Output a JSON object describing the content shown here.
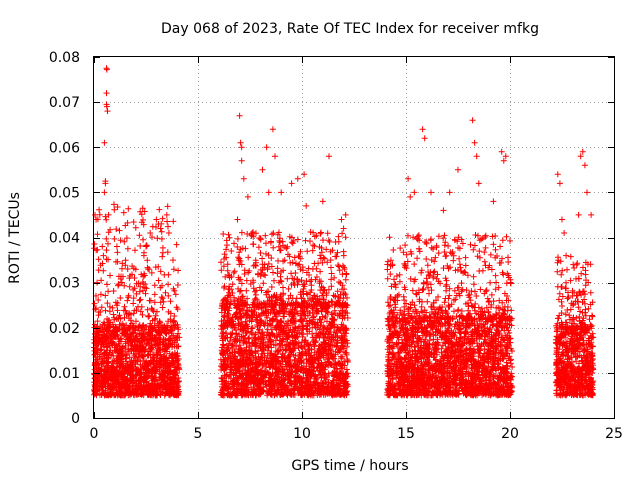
{
  "chart_data": {
    "type": "scatter",
    "title": "Day 068 of 2023, Rate Of TEC Index for receiver mfkg",
    "xlabel": "GPS time / hours",
    "ylabel": "ROTI / TECUs",
    "xlim": [
      0,
      25
    ],
    "ylim": [
      0,
      0.08
    ],
    "xticks": [
      0,
      5,
      10,
      15,
      20,
      25
    ],
    "xtick_labels": [
      "0",
      "5",
      "10",
      "15",
      "20",
      "25"
    ],
    "yticks": [
      0,
      0.01,
      0.02,
      0.03,
      0.04,
      0.05,
      0.06,
      0.07,
      0.08
    ],
    "ytick_labels": [
      "0",
      "0.01",
      "0.02",
      "0.03",
      "0.04",
      "0.05",
      "0.06",
      "0.07",
      "0.08"
    ],
    "grid": true,
    "marker": "+",
    "color": "#ff0000",
    "series": [
      {
        "name": "ROTI",
        "segments": [
          {
            "x_start": 0.0,
            "x_end": 4.1,
            "typical": [
              0.005,
              0.02
            ],
            "max": 0.077
          },
          {
            "x_start": 6.1,
            "x_end": 12.2,
            "typical": [
              0.005,
              0.025
            ],
            "max": 0.067
          },
          {
            "x_start": 14.1,
            "x_end": 20.1,
            "typical": [
              0.005,
              0.022
            ],
            "max": 0.066
          },
          {
            "x_start": 22.2,
            "x_end": 24.0,
            "typical": [
              0.005,
              0.02
            ],
            "max": 0.059
          }
        ],
        "points": [
          [
            0.05,
            0.045
          ],
          [
            0.1,
            0.044
          ],
          [
            0.15,
            0.03
          ],
          [
            0.4,
            0.038
          ],
          [
            0.45,
            0.036
          ],
          [
            0.55,
            0.052
          ],
          [
            0.55,
            0.0525
          ],
          [
            0.5,
            0.05
          ],
          [
            0.5,
            0.061
          ],
          [
            0.6,
            0.0775
          ],
          [
            0.62,
            0.0772
          ],
          [
            0.6,
            0.072
          ],
          [
            0.6,
            0.0695
          ],
          [
            0.62,
            0.069
          ],
          [
            0.65,
            0.068
          ],
          [
            0.7,
            0.045
          ],
          [
            1.1,
            0.038
          ],
          [
            1.7,
            0.031
          ],
          [
            2.2,
            0.028
          ],
          [
            2.4,
            0.036
          ],
          [
            2.5,
            0.038
          ],
          [
            2.6,
            0.033
          ],
          [
            2.7,
            0.041
          ],
          [
            3.0,
            0.044
          ],
          [
            3.1,
            0.043
          ],
          [
            3.2,
            0.042
          ],
          [
            3.5,
            0.045
          ],
          [
            3.6,
            0.041
          ],
          [
            3.8,
            0.035
          ],
          [
            6.6,
            0.037
          ],
          [
            6.9,
            0.044
          ],
          [
            7.0,
            0.067
          ],
          [
            7.05,
            0.061
          ],
          [
            7.1,
            0.06
          ],
          [
            7.1,
            0.057
          ],
          [
            7.2,
            0.053
          ],
          [
            7.4,
            0.049
          ],
          [
            8.1,
            0.055
          ],
          [
            8.3,
            0.06
          ],
          [
            8.4,
            0.05
          ],
          [
            8.6,
            0.064
          ],
          [
            8.7,
            0.058
          ],
          [
            9.0,
            0.05
          ],
          [
            9.5,
            0.052
          ],
          [
            9.8,
            0.053
          ],
          [
            10.1,
            0.054
          ],
          [
            10.2,
            0.047
          ],
          [
            11.0,
            0.048
          ],
          [
            11.3,
            0.058
          ],
          [
            11.9,
            0.044
          ],
          [
            12.0,
            0.042
          ],
          [
            12.1,
            0.045
          ],
          [
            15.1,
            0.053
          ],
          [
            15.2,
            0.049
          ],
          [
            15.4,
            0.05
          ],
          [
            15.8,
            0.064
          ],
          [
            15.9,
            0.062
          ],
          [
            16.2,
            0.05
          ],
          [
            16.8,
            0.046
          ],
          [
            17.1,
            0.05
          ],
          [
            17.5,
            0.055
          ],
          [
            18.2,
            0.066
          ],
          [
            18.3,
            0.061
          ],
          [
            18.4,
            0.058
          ],
          [
            18.5,
            0.052
          ],
          [
            19.2,
            0.048
          ],
          [
            19.6,
            0.059
          ],
          [
            19.7,
            0.057
          ],
          [
            19.8,
            0.058
          ],
          [
            22.3,
            0.054
          ],
          [
            22.4,
            0.052
          ],
          [
            22.5,
            0.044
          ],
          [
            22.6,
            0.041
          ],
          [
            23.3,
            0.045
          ],
          [
            23.4,
            0.058
          ],
          [
            23.5,
            0.059
          ],
          [
            23.6,
            0.056
          ],
          [
            23.7,
            0.05
          ],
          [
            23.9,
            0.045
          ]
        ]
      }
    ]
  }
}
